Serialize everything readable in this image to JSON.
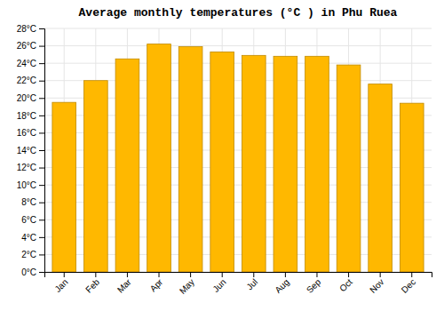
{
  "chart_data": {
    "type": "bar",
    "title": "Average monthly temperatures (°C ) in Phu Ruea",
    "categories": [
      "Jan",
      "Feb",
      "Mar",
      "Apr",
      "May",
      "Jun",
      "Jul",
      "Aug",
      "Sep",
      "Oct",
      "Nov",
      "Dec"
    ],
    "values": [
      19.5,
      22.0,
      24.5,
      26.2,
      25.9,
      25.3,
      24.9,
      24.8,
      24.8,
      23.8,
      21.6,
      19.4
    ],
    "color": "#FFB800",
    "ylim": [
      0,
      28
    ],
    "yticks": [
      {
        "value": 0,
        "label": "0°C"
      },
      {
        "value": 2,
        "label": "2°C"
      },
      {
        "value": 4,
        "label": "4°C"
      },
      {
        "value": 6,
        "label": "6°C"
      },
      {
        "value": 8,
        "label": "8°C"
      },
      {
        "value": 10,
        "label": "10°C"
      },
      {
        "value": 12,
        "label": "12°C"
      },
      {
        "value": 14,
        "label": "14°C"
      },
      {
        "value": 16,
        "label": "16°C"
      },
      {
        "value": 18,
        "label": "18°C"
      },
      {
        "value": 20,
        "label": "20°C"
      },
      {
        "value": 22,
        "label": "22°C"
      },
      {
        "value": 24,
        "label": "24°C"
      },
      {
        "value": 26,
        "label": "26°C"
      },
      {
        "value": 28,
        "label": "28°C"
      }
    ],
    "grid": true
  }
}
